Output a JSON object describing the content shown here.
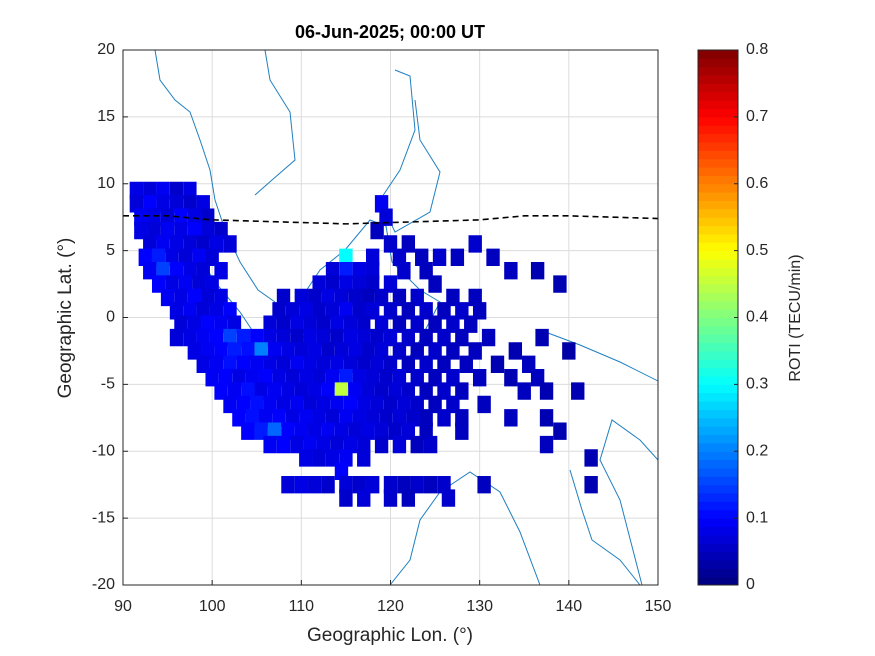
{
  "chart_data": {
    "type": "tilemap",
    "title": "06-Jun-2025; 00:00 UT",
    "x_label": "Geographic Lon. (°)",
    "y_label": "Geographic Lat. (°)",
    "colorbar_label": "ROTI (TECU/min)",
    "colormap": "jet",
    "grid": true,
    "xlim": [
      90,
      150
    ],
    "xticks": [
      90,
      100,
      110,
      120,
      130,
      140,
      150
    ],
    "ylim": [
      -20,
      20
    ],
    "yticks": [
      -20,
      -15,
      -10,
      -5,
      0,
      5,
      10,
      15,
      20
    ],
    "clim": [
      0,
      0.8
    ],
    "cticks": [
      0,
      0.1,
      0.2,
      0.3,
      0.4,
      0.5,
      0.6,
      0.7,
      0.8
    ],
    "series": [
      {
        "y": 9.5,
        "x": [
          91.5,
          93,
          94.5,
          96,
          97.5
        ],
        "values": [
          0.08,
          0.07,
          0.09,
          0.06,
          0.08
        ]
      },
      {
        "y": 8.5,
        "x": [
          91.5,
          93,
          94.5,
          96,
          97.5,
          99,
          119
        ],
        "values": [
          0.07,
          0.1,
          0.08,
          0.07,
          0.06,
          0.08,
          0.09
        ]
      },
      {
        "y": 7.5,
        "x": [
          92,
          93.5,
          95,
          96.5,
          98,
          99.5,
          119.5
        ],
        "values": [
          0.09,
          0.08,
          0.07,
          0.1,
          0.08,
          0.06,
          0.07
        ]
      },
      {
        "y": 6.5,
        "x": [
          92,
          93.5,
          95,
          96.5,
          98,
          99.5,
          101,
          118.5
        ],
        "values": [
          0.08,
          0.07,
          0.09,
          0.08,
          0.1,
          0.07,
          0.06,
          0.05
        ]
      },
      {
        "y": 5.5,
        "x": [
          93,
          94.5,
          96,
          97.5,
          99,
          100.5,
          102,
          120,
          122,
          129.5
        ],
        "values": [
          0.07,
          0.09,
          0.08,
          0.07,
          0.06,
          0.08,
          0.07,
          0.06,
          0.05,
          0.06
        ]
      },
      {
        "y": 4.5,
        "x": [
          92.5,
          94,
          95.5,
          97,
          98.5,
          100,
          115,
          118,
          121,
          123.5,
          125.5,
          127.5,
          131.5
        ],
        "values": [
          0.1,
          0.12,
          0.08,
          0.07,
          0.09,
          0.07,
          0.3,
          0.07,
          0.06,
          0.05,
          0.06,
          0.05,
          0.05
        ]
      },
      {
        "y": 3.5,
        "x": [
          93,
          94.5,
          96,
          97.5,
          99,
          101,
          113.5,
          115,
          116.5,
          118,
          121.5,
          124,
          133.5,
          136.5
        ],
        "values": [
          0.09,
          0.15,
          0.1,
          0.08,
          0.07,
          0.08,
          0.07,
          0.12,
          0.08,
          0.07,
          0.06,
          0.05,
          0.05,
          0.04
        ]
      },
      {
        "y": 2.5,
        "x": [
          94,
          95.5,
          97,
          98.5,
          100,
          112,
          113.5,
          115,
          116.5,
          118,
          120,
          125,
          139
        ],
        "values": [
          0.1,
          0.08,
          0.09,
          0.07,
          0.08,
          0.07,
          0.06,
          0.08,
          0.07,
          0.06,
          0.07,
          0.05,
          0.04
        ]
      },
      {
        "y": 1.5,
        "x": [
          95,
          96.5,
          98,
          99.5,
          101,
          108,
          110,
          111.5,
          113,
          114.5,
          116,
          117.5,
          119,
          121,
          123,
          127,
          129.5
        ],
        "values": [
          0.09,
          0.08,
          0.1,
          0.07,
          0.08,
          0.06,
          0.07,
          0.06,
          0.08,
          0.07,
          0.06,
          0.05,
          0.06,
          0.05,
          0.06,
          0.05,
          0.05
        ]
      },
      {
        "y": 0.5,
        "x": [
          96,
          97.5,
          99,
          100.5,
          102,
          107.5,
          109,
          110.5,
          112,
          113.5,
          115,
          116.5,
          118,
          120,
          122,
          124,
          126,
          128,
          130
        ],
        "values": [
          0.08,
          0.09,
          0.07,
          0.08,
          0.1,
          0.06,
          0.07,
          0.08,
          0.06,
          0.07,
          0.09,
          0.06,
          0.07,
          0.06,
          0.05,
          0.06,
          0.05,
          0.06,
          0.05
        ]
      },
      {
        "y": -0.5,
        "x": [
          96.5,
          98,
          99.5,
          101,
          102.5,
          106.5,
          108,
          109.5,
          111,
          112.5,
          114,
          115.5,
          117,
          119,
          121,
          123,
          125,
          127,
          129
        ],
        "values": [
          0.07,
          0.08,
          0.1,
          0.09,
          0.08,
          0.07,
          0.06,
          0.08,
          0.07,
          0.06,
          0.08,
          0.07,
          0.06,
          0.07,
          0.05,
          0.06,
          0.05,
          0.06,
          0.05
        ]
      },
      {
        "y": -1.5,
        "x": [
          96,
          97.5,
          99,
          100.5,
          102,
          103.5,
          105,
          106.5,
          108,
          109.5,
          111,
          112.5,
          114,
          115.5,
          117,
          118.5,
          120,
          122,
          124,
          126,
          128,
          131,
          137
        ],
        "values": [
          0.07,
          0.08,
          0.09,
          0.1,
          0.15,
          0.12,
          0.1,
          0.08,
          0.07,
          0.06,
          0.08,
          0.07,
          0.06,
          0.08,
          0.07,
          0.06,
          0.07,
          0.06,
          0.05,
          0.06,
          0.05,
          0.05,
          0.04
        ]
      },
      {
        "y": -2.5,
        "x": [
          98,
          99.5,
          101,
          102.5,
          104,
          105.5,
          107,
          108.5,
          110,
          111.5,
          113,
          114.5,
          116,
          117.5,
          119,
          121,
          123,
          125,
          127,
          129.5,
          134,
          140
        ],
        "values": [
          0.08,
          0.09,
          0.1,
          0.12,
          0.11,
          0.2,
          0.09,
          0.08,
          0.07,
          0.08,
          0.06,
          0.07,
          0.08,
          0.06,
          0.07,
          0.06,
          0.05,
          0.06,
          0.05,
          0.05,
          0.04,
          0.03
        ]
      },
      {
        "y": -3.5,
        "x": [
          99,
          100.5,
          102,
          103.5,
          105,
          106.5,
          108,
          109.5,
          111,
          112.5,
          114,
          115.5,
          117,
          118.5,
          120,
          122,
          124,
          126,
          128.5,
          132,
          135.5
        ],
        "values": [
          0.08,
          0.09,
          0.11,
          0.1,
          0.09,
          0.08,
          0.07,
          0.09,
          0.08,
          0.07,
          0.08,
          0.07,
          0.06,
          0.07,
          0.06,
          0.05,
          0.06,
          0.05,
          0.05,
          0.04,
          0.05
        ]
      },
      {
        "y": -4.5,
        "x": [
          100,
          101.5,
          103,
          104.5,
          106,
          107.5,
          109,
          110.5,
          112,
          113.5,
          115,
          116.5,
          118,
          119.5,
          121,
          123,
          125,
          127,
          130,
          133.5,
          136.5
        ],
        "values": [
          0.09,
          0.1,
          0.08,
          0.09,
          0.1,
          0.08,
          0.07,
          0.08,
          0.07,
          0.09,
          0.12,
          0.08,
          0.07,
          0.06,
          0.07,
          0.06,
          0.05,
          0.06,
          0.05,
          0.04,
          0.05
        ]
      },
      {
        "y": -5.5,
        "x": [
          101,
          102.5,
          104,
          105.5,
          107,
          108.5,
          110,
          111.5,
          113,
          114.5,
          116,
          117.5,
          119,
          120.5,
          122,
          124,
          126,
          128,
          135,
          137.5,
          141
        ],
        "values": [
          0.1,
          0.09,
          0.11,
          0.08,
          0.09,
          0.08,
          0.07,
          0.08,
          0.1,
          0.45,
          0.09,
          0.07,
          0.06,
          0.07,
          0.06,
          0.05,
          0.06,
          0.05,
          0.05,
          0.04,
          0.04
        ]
      },
      {
        "y": -6.5,
        "x": [
          102,
          103.5,
          105,
          106.5,
          108,
          109.5,
          111,
          112.5,
          114,
          115.5,
          117,
          118.5,
          120,
          121.5,
          123,
          125,
          127,
          130.5
        ],
        "values": [
          0.09,
          0.1,
          0.11,
          0.09,
          0.08,
          0.09,
          0.07,
          0.08,
          0.09,
          0.1,
          0.08,
          0.07,
          0.06,
          0.07,
          0.06,
          0.05,
          0.06,
          0.05
        ]
      },
      {
        "y": -7.5,
        "x": [
          103,
          104.5,
          106,
          107.5,
          109,
          110.5,
          112,
          113.5,
          115,
          116.5,
          118,
          119.5,
          121,
          122.5,
          124,
          126,
          128,
          133.5,
          137.5
        ],
        "values": [
          0.1,
          0.11,
          0.09,
          0.1,
          0.08,
          0.09,
          0.08,
          0.07,
          0.09,
          0.08,
          0.07,
          0.06,
          0.07,
          0.06,
          0.05,
          0.06,
          0.05,
          0.05,
          0.04
        ]
      },
      {
        "y": -8.5,
        "x": [
          104,
          105.5,
          107,
          108.5,
          110,
          111.5,
          113,
          114.5,
          116,
          117.5,
          119,
          120.5,
          122,
          124,
          128,
          139
        ],
        "values": [
          0.1,
          0.12,
          0.18,
          0.1,
          0.09,
          0.08,
          0.09,
          0.08,
          0.07,
          0.08,
          0.07,
          0.06,
          0.07,
          0.05,
          0.05,
          0.04
        ]
      },
      {
        "y": -9.5,
        "x": [
          106.5,
          108,
          109.5,
          111,
          112.5,
          114,
          115.5,
          117,
          119,
          121,
          123,
          124.5,
          137.5
        ],
        "values": [
          0.09,
          0.1,
          0.08,
          0.09,
          0.08,
          0.07,
          0.08,
          0.07,
          0.06,
          0.07,
          0.05,
          0.06,
          0.05
        ]
      },
      {
        "y": -10.5,
        "x": [
          110.5,
          112,
          113.5,
          115,
          117,
          142.5
        ],
        "values": [
          0.08,
          0.07,
          0.08,
          0.09,
          0.07,
          0.04
        ]
      },
      {
        "y": -11.5,
        "x": [
          114.5
        ],
        "values": [
          0.1
        ]
      },
      {
        "y": -12.5,
        "x": [
          108.5,
          110,
          111.5,
          113,
          115,
          116.5,
          118,
          120,
          121.5,
          123,
          124.5,
          126,
          130.5,
          142.5
        ],
        "values": [
          0.07,
          0.08,
          0.07,
          0.06,
          0.07,
          0.06,
          0.07,
          0.06,
          0.05,
          0.06,
          0.05,
          0.06,
          0.05,
          0.04
        ]
      },
      {
        "y": -13.5,
        "x": [
          115,
          117,
          120,
          122,
          126.5
        ],
        "values": [
          0.06,
          0.07,
          0.06,
          0.05,
          0.06
        ]
      }
    ],
    "equator": {
      "x": [
        90,
        95,
        100,
        105,
        110,
        115,
        120,
        125,
        130,
        135,
        140,
        145,
        150
      ],
      "y": [
        7.6,
        7.6,
        7.3,
        7.2,
        7.1,
        7.0,
        7.1,
        7.2,
        7.3,
        7.6,
        7.6,
        7.5,
        7.4
      ]
    }
  }
}
